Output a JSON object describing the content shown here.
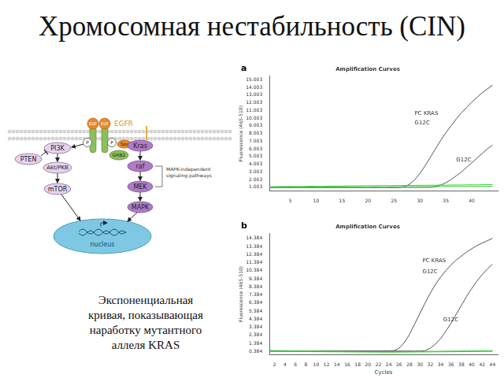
{
  "title": "Хромосомная нестабильность (CIN)",
  "caption": [
    "Экспоненциальная",
    "кривая, показывающая",
    "наработку мутантного",
    "аллеля KRAS"
  ],
  "diagram": {
    "nodes": [
      {
        "label": "EGF"
      },
      {
        "label": "EGF"
      },
      {
        "label": "EGFR"
      },
      {
        "label": "P"
      },
      {
        "label": "P"
      },
      {
        "label": "PI3K"
      },
      {
        "label": "PTEN"
      },
      {
        "label": "Akt/PKB"
      },
      {
        "label": "mTOR"
      },
      {
        "label": "GRB2"
      },
      {
        "label": "Sos"
      },
      {
        "label": "Kras"
      },
      {
        "label": "raf"
      },
      {
        "label": "MEK"
      },
      {
        "label": "MAPK"
      },
      {
        "label": [
          "MAPK-independent",
          "signaling pathways"
        ]
      },
      {
        "label": "nucleus"
      }
    ]
  },
  "chart_data": [
    {
      "type": "line",
      "panel_label": "a",
      "title": "Amplification Curves",
      "y_label": "Fluorescence (465-510)",
      "grid": false,
      "x": [
        1,
        2,
        3,
        4,
        5,
        6,
        7,
        8,
        9,
        10,
        11,
        12,
        13,
        14,
        15,
        16,
        17,
        18,
        19,
        20,
        21,
        22,
        23,
        24,
        25,
        26,
        27,
        28,
        29,
        30,
        31,
        32,
        33,
        34,
        35,
        36,
        37,
        38,
        39,
        40,
        41,
        42,
        43,
        44
      ],
      "xlim": [
        1,
        45
      ],
      "xticks": [
        5,
        10,
        15,
        20,
        25,
        30,
        35,
        40
      ],
      "ylim": [
        0.5,
        15.5
      ],
      "yticks": [
        1.003,
        2.003,
        3.003,
        4.003,
        5.003,
        6.003,
        7.003,
        8.003,
        9.003,
        10.003,
        11.003,
        12.003,
        13.003,
        14.003,
        15.003
      ],
      "series": [
        {
          "color": "#33cc33",
          "values": [
            1.05,
            1.08,
            1.1,
            1.1,
            1.12,
            1.1,
            1.1,
            1.12,
            1.15,
            1.13,
            1.12,
            1.15,
            1.17,
            1.15,
            1.16,
            1.18,
            1.2,
            1.18,
            1.2,
            1.22,
            1.2,
            1.22,
            1.24,
            1.22,
            1.23,
            1.25,
            1.24,
            1.26,
            1.25,
            1.27,
            1.26,
            1.28,
            1.27,
            1.3,
            1.28,
            1.3,
            1.31,
            1.3,
            1.32,
            1.33,
            1.32,
            1.34,
            1.35,
            1.36
          ]
        },
        {
          "color": "#33cc33",
          "values": [
            0.95,
            0.97,
            0.98,
            0.98,
            1.0,
            0.99,
            1.0,
            1.01,
            1.0,
            1.02,
            1.01,
            1.0,
            1.02,
            1.03,
            1.02,
            1.03,
            1.04,
            1.03,
            1.05,
            1.04,
            1.05,
            1.06,
            1.05,
            1.06,
            1.07,
            1.06,
            1.08,
            1.07,
            1.08,
            1.09,
            1.08,
            1.1,
            1.09,
            1.1,
            1.11,
            1.1,
            1.12,
            1.11,
            1.12,
            1.13,
            1.12,
            1.14,
            1.13,
            1.15
          ]
        },
        {
          "color": "#555555",
          "values": [
            1.0,
            1.0,
            1.0,
            1.0,
            1.0,
            1.0,
            1.0,
            1.0,
            1.0,
            1.0,
            1.0,
            1.0,
            1.0,
            1.0,
            1.0,
            1.0,
            1.0,
            1.0,
            1.0,
            1.0,
            1.0,
            1.0,
            1.0,
            1.0,
            1.0,
            1.0,
            1.1,
            1.4,
            2.0,
            2.8,
            3.8,
            4.9,
            6.0,
            7.1,
            8.1,
            9.0,
            9.9,
            10.7,
            11.4,
            12.1,
            12.7,
            13.3,
            13.8,
            14.3
          ]
        },
        {
          "color": "#555555",
          "values": [
            1.0,
            1.0,
            1.0,
            1.0,
            1.0,
            1.0,
            1.0,
            1.0,
            1.0,
            1.0,
            1.0,
            1.0,
            1.0,
            1.0,
            1.0,
            1.0,
            1.0,
            1.0,
            1.0,
            1.0,
            1.0,
            1.0,
            1.0,
            1.0,
            1.0,
            1.0,
            1.0,
            1.0,
            1.0,
            1.0,
            1.0,
            1.0,
            1.1,
            1.3,
            1.6,
            2.0,
            2.5,
            3.0,
            3.6,
            4.2,
            4.8,
            5.4,
            6.0,
            6.5
          ]
        }
      ],
      "annotations": [
        {
          "text": "PC KRAS",
          "x": 29,
          "y": 10.6
        },
        {
          "text": "G12C",
          "x": 29,
          "y": 9.4
        },
        {
          "text": "G12C",
          "x": 37,
          "y": 4.6
        }
      ]
    },
    {
      "type": "line",
      "panel_label": "b",
      "title": "Amplification Curves",
      "y_label": "Fluorescence (465-510)",
      "x_label": "Cycles",
      "grid": false,
      "x": [
        1,
        2,
        3,
        4,
        5,
        6,
        7,
        8,
        9,
        10,
        11,
        12,
        13,
        14,
        15,
        16,
        17,
        18,
        19,
        20,
        21,
        22,
        23,
        24,
        25,
        26,
        27,
        28,
        29,
        30,
        31,
        32,
        33,
        34,
        35,
        36,
        37,
        38,
        39,
        40,
        41,
        42,
        43,
        44
      ],
      "xlim": [
        1,
        45
      ],
      "xticks": [
        2,
        4,
        6,
        8,
        10,
        12,
        14,
        16,
        18,
        20,
        22,
        24,
        26,
        28,
        30,
        32,
        34,
        36,
        38,
        40,
        42,
        44
      ],
      "ylim": [
        0,
        15
      ],
      "yticks": [
        0.384,
        1.384,
        2.384,
        3.384,
        4.384,
        5.384,
        6.384,
        7.384,
        8.384,
        9.384,
        10.384,
        11.384,
        12.384,
        13.384,
        14.384
      ],
      "series": [
        {
          "color": "#33cc33",
          "values": [
            0.52,
            0.5,
            0.5,
            0.49,
            0.48,
            0.48,
            0.47,
            0.46,
            0.46,
            0.45,
            0.44,
            0.44,
            0.43,
            0.42,
            0.42,
            0.41,
            0.4,
            0.4,
            0.39,
            0.39,
            0.38,
            0.38,
            0.37,
            0.37,
            0.37,
            0.38,
            0.38,
            0.39,
            0.4,
            0.4,
            0.41,
            0.42,
            0.42,
            0.43,
            0.44,
            0.44,
            0.45,
            0.46,
            0.46,
            0.47,
            0.48,
            0.48,
            0.49,
            0.5
          ]
        },
        {
          "color": "#33cc33",
          "values": [
            0.42,
            0.41,
            0.41,
            0.4,
            0.4,
            0.39,
            0.39,
            0.38,
            0.38,
            0.37,
            0.37,
            0.36,
            0.36,
            0.35,
            0.35,
            0.34,
            0.34,
            0.33,
            0.33,
            0.32,
            0.32,
            0.32,
            0.31,
            0.31,
            0.31,
            0.32,
            0.32,
            0.33,
            0.33,
            0.34,
            0.34,
            0.35,
            0.35,
            0.36,
            0.36,
            0.37,
            0.37,
            0.38,
            0.38,
            0.39,
            0.39,
            0.4,
            0.4,
            0.41
          ]
        },
        {
          "color": "#555555",
          "values": [
            0.45,
            0.45,
            0.45,
            0.45,
            0.45,
            0.45,
            0.45,
            0.45,
            0.45,
            0.45,
            0.45,
            0.45,
            0.45,
            0.45,
            0.45,
            0.45,
            0.45,
            0.45,
            0.45,
            0.45,
            0.45,
            0.45,
            0.45,
            0.45,
            0.5,
            0.8,
            1.5,
            2.5,
            3.8,
            5.1,
            6.4,
            7.6,
            8.7,
            9.6,
            10.4,
            11.1,
            11.7,
            12.2,
            12.7,
            13.1,
            13.5,
            13.8,
            14.1,
            14.4
          ]
        },
        {
          "color": "#555555",
          "values": [
            0.45,
            0.45,
            0.45,
            0.45,
            0.45,
            0.45,
            0.45,
            0.45,
            0.45,
            0.45,
            0.45,
            0.45,
            0.45,
            0.45,
            0.45,
            0.45,
            0.45,
            0.45,
            0.45,
            0.45,
            0.45,
            0.45,
            0.45,
            0.45,
            0.45,
            0.45,
            0.45,
            0.45,
            0.45,
            0.45,
            0.5,
            0.8,
            1.3,
            2.0,
            2.9,
            3.9,
            5.0,
            6.1,
            7.2,
            8.2,
            9.1,
            9.9,
            10.6,
            11.2
          ]
        }
      ],
      "annotations": [
        {
          "text": "PC KRAS",
          "x": 30.5,
          "y": 11.6
        },
        {
          "text": "G12C",
          "x": 30.5,
          "y": 10.2
        },
        {
          "text": "G12C",
          "x": 34.5,
          "y": 4.3
        }
      ]
    }
  ]
}
